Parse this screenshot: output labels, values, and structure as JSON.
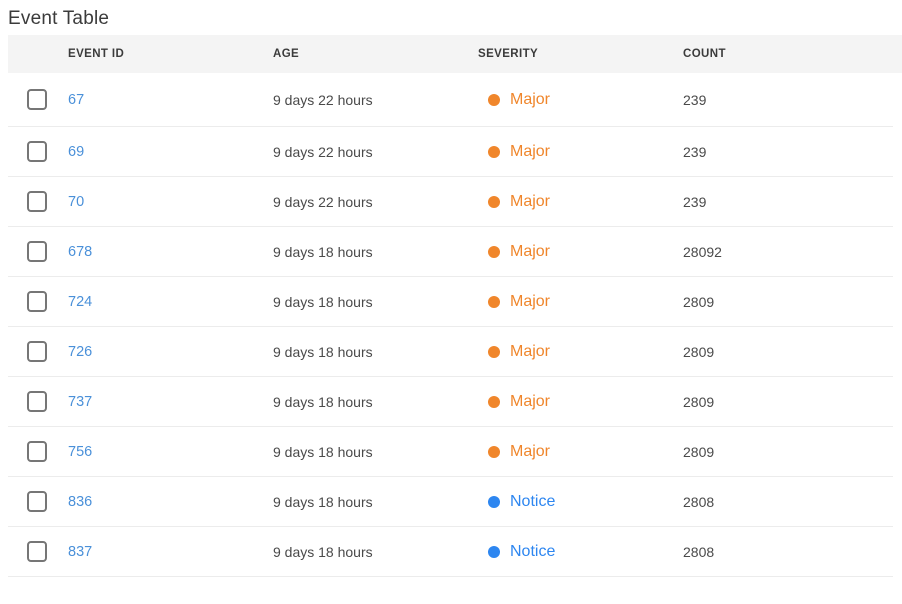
{
  "title": "Event Table",
  "colors": {
    "link_blue": "#4a90d9",
    "major_orange": "#f0862b",
    "notice_blue": "#2d86f0",
    "header_bg": "#f4f4f4",
    "divider": "#ececec",
    "body_text": "#4a4a4a"
  },
  "table": {
    "columns": [
      "EVENT ID",
      "AGE",
      "SEVERITY",
      "COUNT"
    ],
    "rows": [
      {
        "id": "67",
        "age": "9 days 22 hours",
        "severity": "Major",
        "severity_color": "#f0862b",
        "count": "239"
      },
      {
        "id": "69",
        "age": "9 days 22 hours",
        "severity": "Major",
        "severity_color": "#f0862b",
        "count": "239"
      },
      {
        "id": "70",
        "age": "9 days 22 hours",
        "severity": "Major",
        "severity_color": "#f0862b",
        "count": "239"
      },
      {
        "id": "678",
        "age": "9 days 18 hours",
        "severity": "Major",
        "severity_color": "#f0862b",
        "count": "28092"
      },
      {
        "id": "724",
        "age": "9 days 18 hours",
        "severity": "Major",
        "severity_color": "#f0862b",
        "count": "2809"
      },
      {
        "id": "726",
        "age": "9 days 18 hours",
        "severity": "Major",
        "severity_color": "#f0862b",
        "count": "2809"
      },
      {
        "id": "737",
        "age": "9 days 18 hours",
        "severity": "Major",
        "severity_color": "#f0862b",
        "count": "2809"
      },
      {
        "id": "756",
        "age": "9 days 18 hours",
        "severity": "Major",
        "severity_color": "#f0862b",
        "count": "2809"
      },
      {
        "id": "836",
        "age": "9 days 18 hours",
        "severity": "Notice",
        "severity_color": "#2d86f0",
        "count": "2808"
      },
      {
        "id": "837",
        "age": "9 days 18 hours",
        "severity": "Notice",
        "severity_color": "#2d86f0",
        "count": "2808"
      }
    ]
  }
}
